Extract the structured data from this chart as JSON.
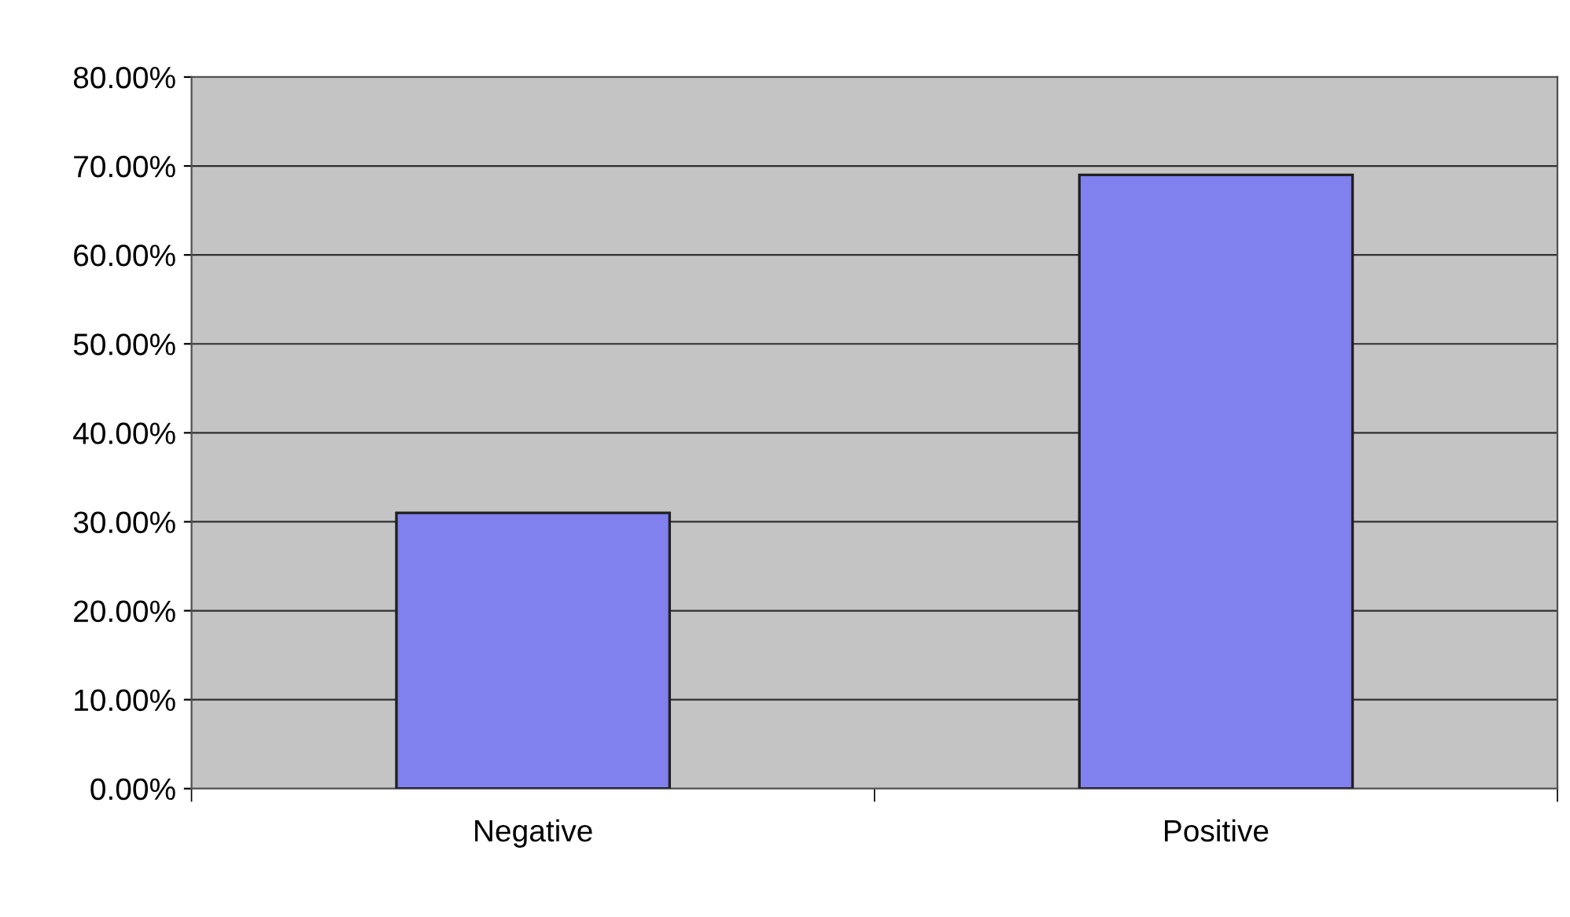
{
  "chart_data": {
    "type": "bar",
    "categories": [
      "Negative",
      "Positive"
    ],
    "values": [
      31,
      69
    ],
    "color": "#8080ee",
    "ylim": [
      0,
      80
    ],
    "yticks": [
      {
        "value": 0,
        "label": "0.00%"
      },
      {
        "value": 10,
        "label": "10.00%"
      },
      {
        "value": 20,
        "label": "20.00%"
      },
      {
        "value": 30,
        "label": "30.00%"
      },
      {
        "value": 40,
        "label": "40.00%"
      },
      {
        "value": 50,
        "label": "50.00%"
      },
      {
        "value": 60,
        "label": "60.00%"
      },
      {
        "value": 70,
        "label": "70.00%"
      },
      {
        "value": 80,
        "label": "80.00%"
      }
    ],
    "grid": "y",
    "legend": false
  }
}
